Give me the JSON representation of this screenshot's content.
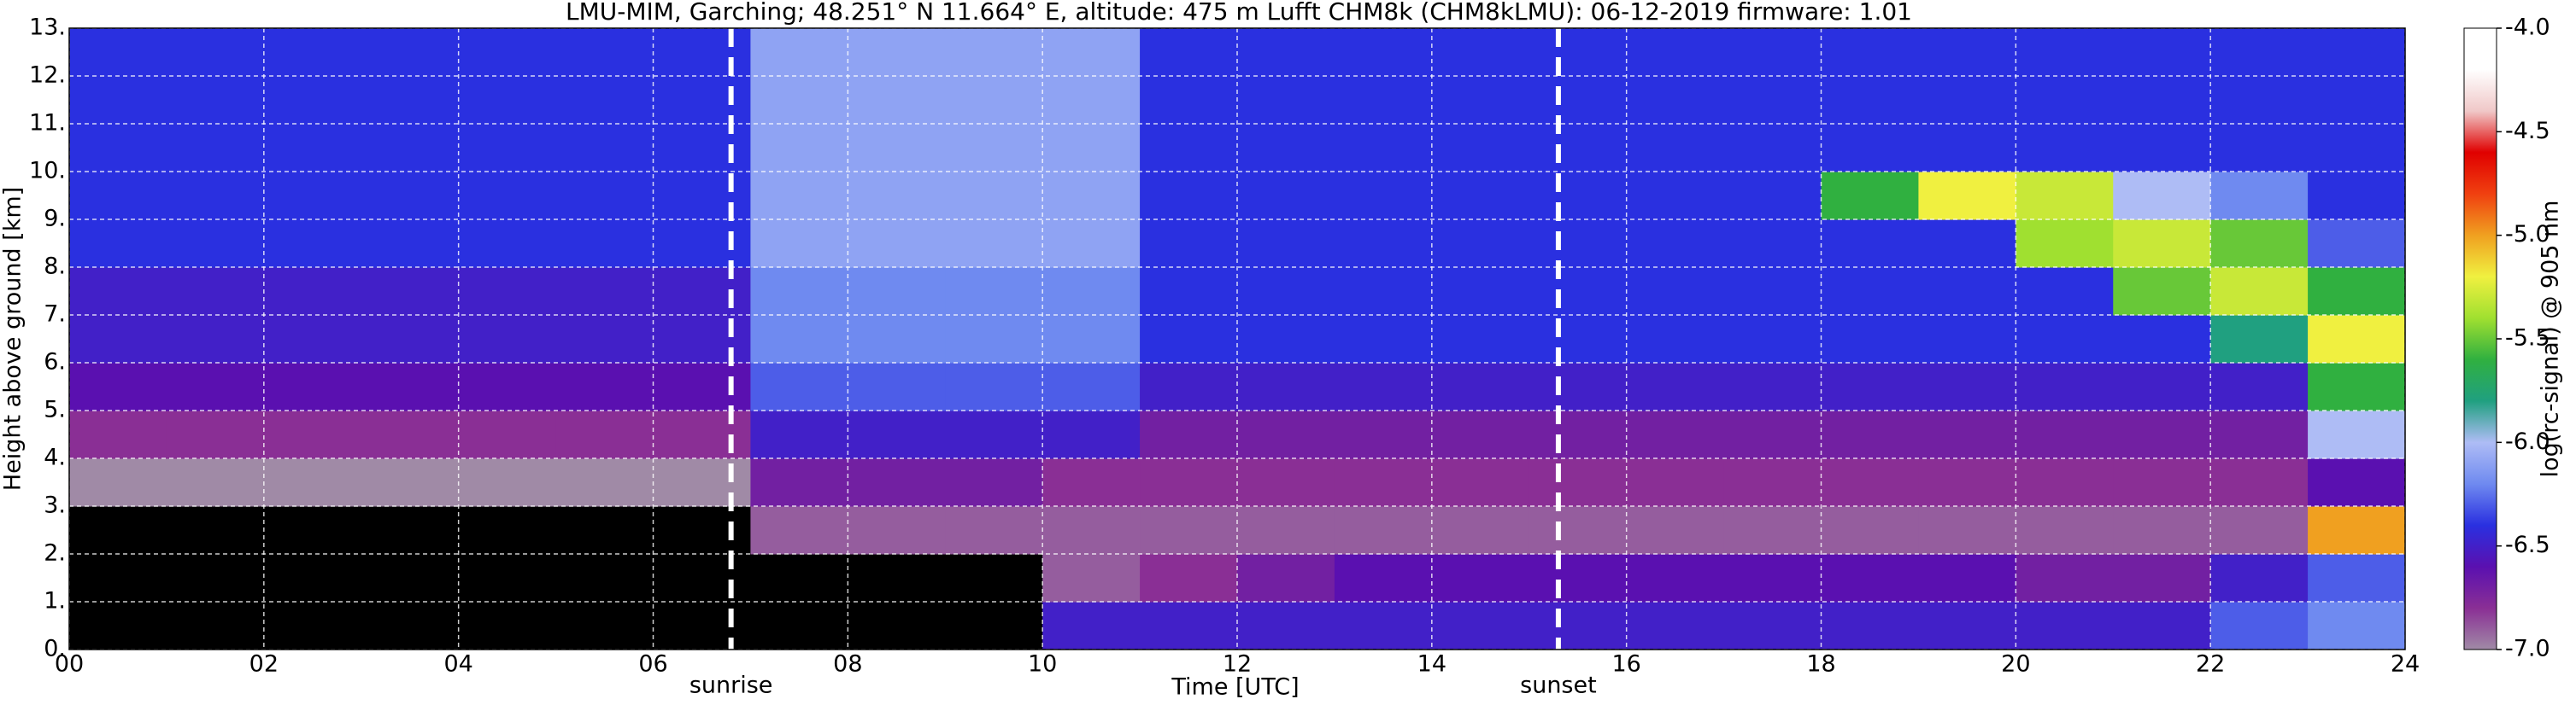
{
  "chart_data": {
    "type": "heatmap",
    "title": "LMU-MIM, Garching; 48.251° N 11.664° E, altitude: 475 m    Lufft CHM8k (CHM8kLMU): 06-12-2019    firmware: 1.01",
    "x_label": "Time [UTC]",
    "y_label": "Height above ground [km]",
    "x": [
      0.5,
      1.5,
      2.5,
      3.5,
      4.5,
      5.5,
      6.5,
      7.5,
      8.5,
      9.5,
      10.5,
      11.5,
      12.5,
      13.5,
      14.5,
      15.5,
      16.5,
      17.5,
      18.5,
      19.5,
      20.5,
      21.5,
      22.5,
      23.5
    ],
    "y": [
      0.5,
      1.5,
      2.5,
      3.5,
      4.5,
      5.5,
      6.5,
      7.5,
      8.5,
      9.5,
      10.5,
      11.5,
      12.5
    ],
    "z": [
      [
        -7.2,
        -7.2,
        -7.2,
        -7.2,
        -7.2,
        -7.2,
        -7.2,
        -7.2,
        -7.2,
        -7.2,
        -6.5,
        -6.5,
        -6.5,
        -6.5,
        -6.5,
        -6.5,
        -6.5,
        -6.5,
        -6.5,
        -6.5,
        -6.5,
        -6.5,
        -6.3,
        -6.2
      ],
      [
        -7.2,
        -7.2,
        -7.2,
        -7.2,
        -7.2,
        -7.2,
        -7.2,
        -7.2,
        -7.2,
        -7.2,
        -6.9,
        -6.8,
        -6.7,
        -6.6,
        -6.6,
        -6.6,
        -6.6,
        -6.6,
        -6.6,
        -6.6,
        -6.7,
        -6.7,
        -6.5,
        -6.3
      ],
      [
        -7.1,
        -7.1,
        -7.1,
        -7.1,
        -7.1,
        -7.1,
        -7.1,
        -6.9,
        -6.9,
        -6.9,
        -6.9,
        -6.9,
        -6.9,
        -6.9,
        -6.9,
        -6.9,
        -6.9,
        -6.9,
        -6.9,
        -6.9,
        -6.9,
        -6.9,
        -6.9,
        -5.0
      ],
      [
        -7.0,
        -7.0,
        -7.0,
        -7.0,
        -7.0,
        -7.0,
        -7.0,
        -6.7,
        -6.7,
        -6.7,
        -6.8,
        -6.8,
        -6.8,
        -6.8,
        -6.8,
        -6.8,
        -6.8,
        -6.8,
        -6.8,
        -6.8,
        -6.8,
        -6.8,
        -6.8,
        -6.6
      ],
      [
        -6.8,
        -6.8,
        -6.8,
        -6.8,
        -6.8,
        -6.8,
        -6.8,
        -6.5,
        -6.5,
        -6.5,
        -6.5,
        -6.7,
        -6.7,
        -6.7,
        -6.7,
        -6.7,
        -6.7,
        -6.7,
        -6.7,
        -6.7,
        -6.7,
        -6.7,
        -6.7,
        -6.0
      ],
      [
        -6.6,
        -6.6,
        -6.6,
        -6.6,
        -6.6,
        -6.6,
        -6.6,
        -6.3,
        -6.3,
        -6.3,
        -6.3,
        -6.5,
        -6.5,
        -6.5,
        -6.5,
        -6.5,
        -6.5,
        -6.5,
        -6.5,
        -6.5,
        -6.5,
        -6.5,
        -6.5,
        -5.6
      ],
      [
        -6.5,
        -6.5,
        -6.5,
        -6.5,
        -6.5,
        -6.5,
        -6.5,
        -6.2,
        -6.2,
        -6.2,
        -6.2,
        -6.4,
        -6.4,
        -6.4,
        -6.4,
        -6.4,
        -6.4,
        -6.4,
        -6.4,
        -6.4,
        -6.4,
        -6.4,
        -5.8,
        -5.2
      ],
      [
        -6.5,
        -6.5,
        -6.5,
        -6.5,
        -6.5,
        -6.5,
        -6.5,
        -6.2,
        -6.2,
        -6.2,
        -6.2,
        -6.4,
        -6.4,
        -6.4,
        -6.4,
        -6.4,
        -6.4,
        -6.4,
        -6.4,
        -6.4,
        -6.4,
        -5.5,
        -5.3,
        -5.6
      ],
      [
        -6.4,
        -6.4,
        -6.4,
        -6.4,
        -6.4,
        -6.4,
        -6.4,
        -6.1,
        -6.1,
        -6.1,
        -6.1,
        -6.4,
        -6.4,
        -6.4,
        -6.4,
        -6.4,
        -6.4,
        -6.4,
        -6.4,
        -6.4,
        -5.4,
        -5.3,
        -5.5,
        -6.3
      ],
      [
        -6.4,
        -6.4,
        -6.4,
        -6.4,
        -6.4,
        -6.4,
        -6.4,
        -6.1,
        -6.1,
        -6.1,
        -6.1,
        -6.4,
        -6.4,
        -6.4,
        -6.4,
        -6.4,
        -6.4,
        -6.4,
        -5.6,
        -5.2,
        -5.3,
        -6.0,
        -6.2,
        -6.4
      ],
      [
        -6.4,
        -6.4,
        -6.4,
        -6.4,
        -6.4,
        -6.4,
        -6.4,
        -6.1,
        -6.1,
        -6.1,
        -6.1,
        -6.4,
        -6.4,
        -6.4,
        -6.4,
        -6.4,
        -6.4,
        -6.4,
        -6.4,
        -6.4,
        -6.4,
        -6.4,
        -6.4,
        -6.4
      ],
      [
        -6.4,
        -6.4,
        -6.4,
        -6.4,
        -6.4,
        -6.4,
        -6.4,
        -6.1,
        -6.1,
        -6.1,
        -6.1,
        -6.4,
        -6.4,
        -6.4,
        -6.4,
        -6.4,
        -6.4,
        -6.4,
        -6.4,
        -6.4,
        -6.4,
        -6.4,
        -6.4,
        -6.4
      ],
      [
        -6.4,
        -6.4,
        -6.4,
        -6.4,
        -6.4,
        -6.4,
        -6.4,
        -6.1,
        -6.1,
        -6.1,
        -6.1,
        -6.4,
        -6.4,
        -6.4,
        -6.4,
        -6.4,
        -6.4,
        -6.4,
        -6.4,
        -6.4,
        -6.4,
        -6.4,
        -6.4,
        -6.4
      ]
    ],
    "xlim": [
      0,
      24
    ],
    "xticks": [
      {
        "value": 0,
        "label": "00"
      },
      {
        "value": 2,
        "label": "02"
      },
      {
        "value": 4,
        "label": "04"
      },
      {
        "value": 6,
        "label": "06"
      },
      {
        "value": 8,
        "label": "08"
      },
      10,
      12,
      14,
      16,
      18,
      20,
      22,
      24
    ],
    "ylim": [
      0,
      13
    ],
    "yticks": [
      {
        "value": 0,
        "label": "0."
      },
      {
        "value": 1,
        "label": "1."
      },
      {
        "value": 2,
        "label": "2."
      },
      {
        "value": 3,
        "label": "3."
      },
      {
        "value": 4,
        "label": "4."
      },
      {
        "value": 5,
        "label": "5."
      },
      {
        "value": 6,
        "label": "6."
      },
      {
        "value": 7,
        "label": "7."
      },
      {
        "value": 8,
        "label": "8."
      },
      {
        "value": 9,
        "label": "9."
      },
      {
        "value": 10,
        "label": "10."
      },
      {
        "value": 11,
        "label": "11."
      },
      {
        "value": 12,
        "label": "12."
      },
      {
        "value": 13,
        "label": "13."
      }
    ],
    "grid": true,
    "colorbar": {
      "label": "log(rc-signal) @ 905 nm",
      "lim": [
        -7,
        -4
      ],
      "ticks": [
        {
          "value": -7,
          "label": "-7.0"
        },
        -6.5,
        {
          "value": -6,
          "label": "-6.0"
        },
        -5.5,
        {
          "value": -5,
          "label": "-5.0"
        },
        -4.5,
        {
          "value": -4,
          "label": "-4.0"
        }
      ],
      "colormap": [
        "#a08aa6",
        "#8a2f95",
        "#5a10b0",
        "#2a30e0",
        "#6f8af0",
        "#aebcf5",
        "#20a080",
        "#30b040",
        "#a0e030",
        "#f0f040",
        "#f0a020",
        "#f04010",
        "#e00000",
        "#f0c8c8",
        "#ffffff",
        "#ffffff"
      ],
      "under_color": "#000000"
    },
    "vlines": [
      {
        "x": 6.8,
        "label": "sunrise"
      },
      {
        "x": 15.3,
        "label": "sunset"
      }
    ]
  }
}
